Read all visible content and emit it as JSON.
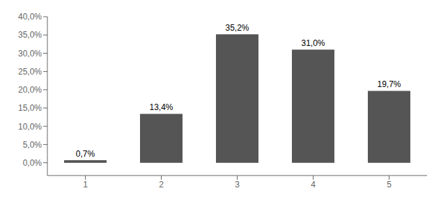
{
  "chart_data": {
    "type": "bar",
    "categories": [
      "1",
      "2",
      "3",
      "4",
      "5"
    ],
    "values": [
      0.7,
      13.4,
      35.2,
      31.0,
      19.7
    ],
    "value_labels": [
      "0,7%",
      "13,4%",
      "35,2%",
      "31,0%",
      "19,7%"
    ],
    "data_labels": true,
    "color": "#555555",
    "ylim": [
      -3.5,
      40
    ],
    "yticks": [
      {
        "value": 0,
        "label": "0,0%"
      },
      {
        "value": 5,
        "label": "5,0%"
      },
      {
        "value": 10,
        "label": "10,0%"
      },
      {
        "value": 15,
        "label": "15,0%"
      },
      {
        "value": 20,
        "label": "20,0%"
      },
      {
        "value": 25,
        "label": "25,0%"
      },
      {
        "value": 30,
        "label": "30,0%"
      },
      {
        "value": 35,
        "label": "35,0%"
      },
      {
        "value": 40,
        "label": "40,0%"
      }
    ],
    "grid": false
  }
}
